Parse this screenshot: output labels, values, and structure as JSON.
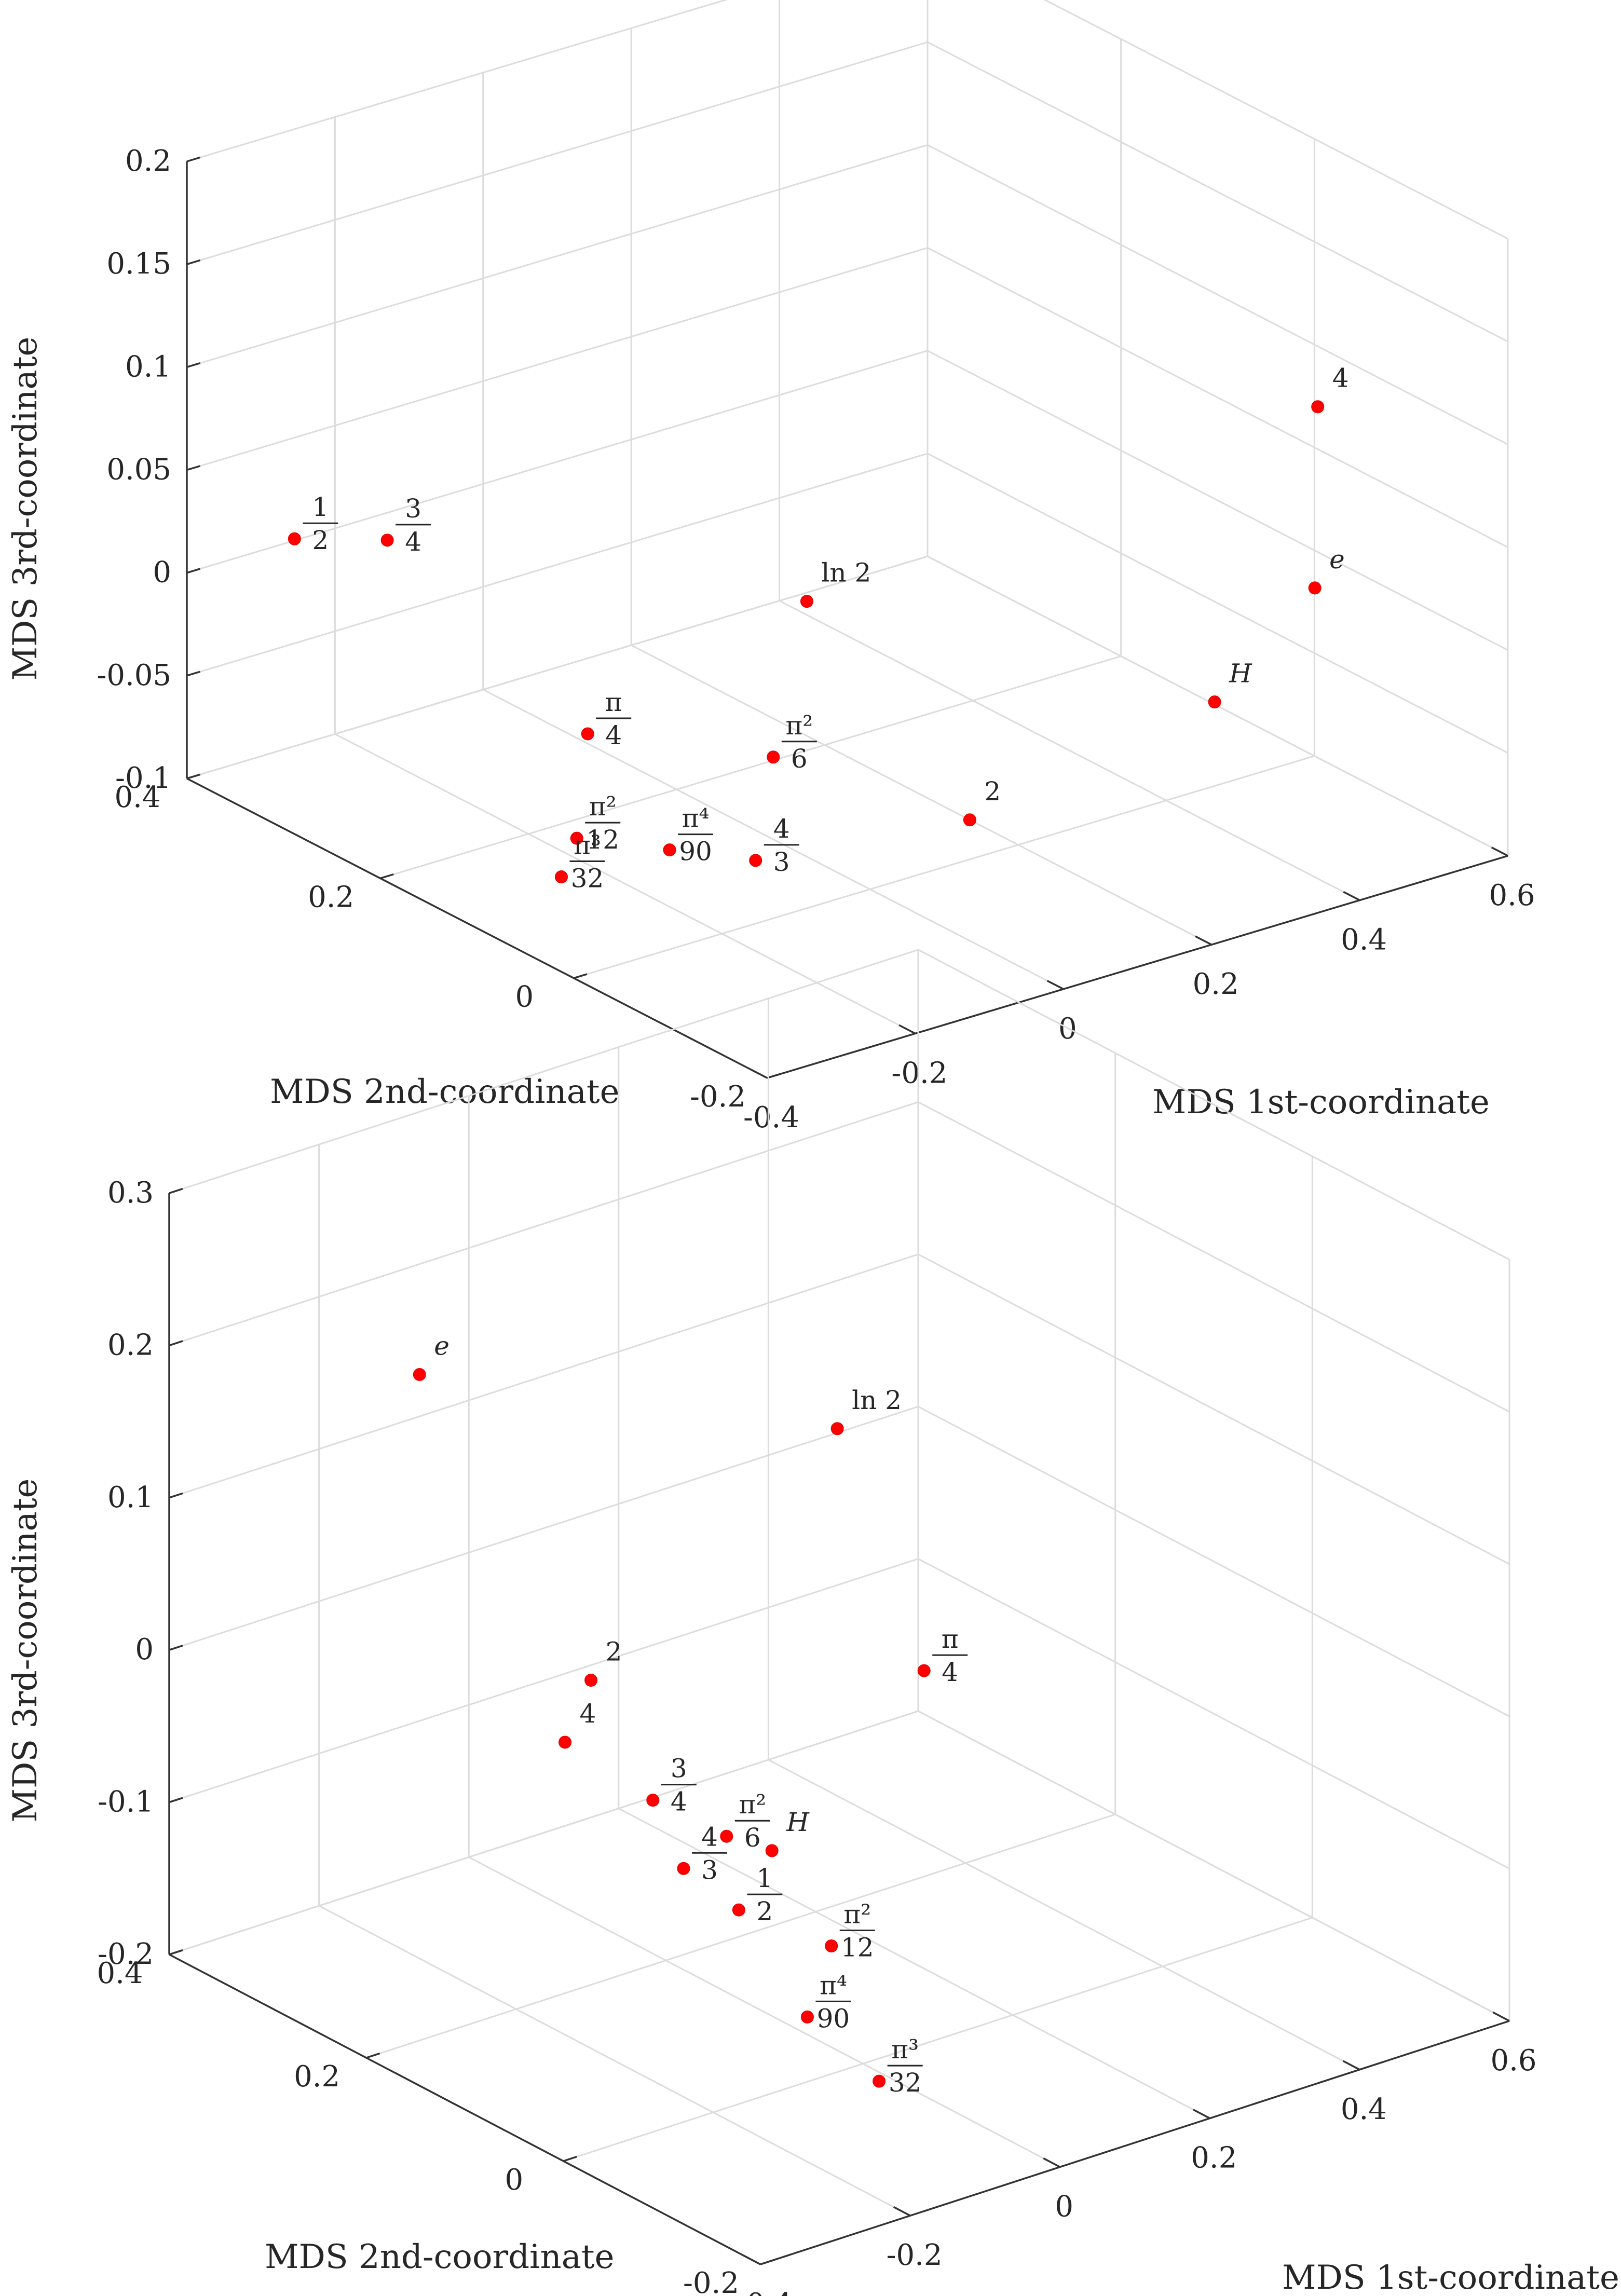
{
  "chart_data": [
    {
      "type": "scatter",
      "title": "",
      "xlabel": "MDS 1st-coordinate",
      "ylabel": "MDS 2nd-coordinate",
      "zlabel": "MDS 3rd-coordinate",
      "xlim": [
        -0.4,
        0.6
      ],
      "ylim": [
        -0.2,
        0.4
      ],
      "zlim": [
        -0.1,
        0.2
      ],
      "xticks": [
        "-0.4",
        "-0.2",
        "0",
        "0.2",
        "0.4",
        "0.6"
      ],
      "yticks": [
        "-0.2",
        "0",
        "0.2",
        "0.4"
      ],
      "zticks": [
        "-0.1",
        "-0.05",
        "0",
        "0.05",
        "0.1",
        "0.15",
        "0.2"
      ],
      "grid": true,
      "series": [
        {
          "color": "#ff0000",
          "points": [
            {
              "label": "1/2",
              "x": -0.32,
              "y": 0.35,
              "z": 0.02
            },
            {
              "label": "3/4",
              "x": -0.26,
              "y": 0.3,
              "z": 0.025
            },
            {
              "label": "ln 2",
              "x": -0.02,
              "y": 0.05,
              "z": 0.03
            },
            {
              "label": "4",
              "x": 0.5,
              "y": -0.08,
              "z": 0.1
            },
            {
              "label": "e",
              "x": 0.47,
              "y": -0.1,
              "z": 0.02
            },
            {
              "label": "H",
              "x": 0.4,
              "y": -0.05,
              "z": -0.04
            },
            {
              "label": "π/4",
              "x": -0.12,
              "y": 0.2,
              "z": -0.06
            },
            {
              "label": "π²/6",
              "x": 0.0,
              "y": 0.1,
              "z": -0.06
            },
            {
              "label": "2",
              "x": 0.2,
              "y": 0.05,
              "z": -0.1
            },
            {
              "label": "π²/12",
              "x": -0.2,
              "y": 0.15,
              "z": -0.09
            },
            {
              "label": "π⁴/90",
              "x": -0.14,
              "y": 0.1,
              "z": -0.09
            },
            {
              "label": "4/3",
              "x": -0.05,
              "y": 0.08,
              "z": -0.1
            },
            {
              "label": "π³/32",
              "x": -0.26,
              "y": 0.12,
              "z": -0.095
            }
          ]
        }
      ]
    },
    {
      "type": "scatter",
      "title": "",
      "xlabel": "MDS 1st-coordinate",
      "ylabel": "MDS 2nd-coordinate",
      "zlabel": "MDS 3rd-coordinate",
      "xlim": [
        -0.4,
        0.6
      ],
      "ylim": [
        -0.2,
        0.4
      ],
      "zlim": [
        -0.2,
        0.3
      ],
      "xticks": [
        "-0.4",
        "-0.2",
        "0",
        "0.2",
        "0.4",
        "0.6"
      ],
      "yticks": [
        "-0.2",
        "0",
        "0.2",
        "0.4"
      ],
      "zticks": [
        "-0.2",
        "-0.1",
        "0",
        "0.1",
        "0.2",
        "0.3"
      ],
      "grid": true,
      "series": [
        {
          "color": "#ff0000",
          "points": [
            {
              "label": "ln 2",
              "x": -0.1,
              "y": -0.05,
              "z": 0.25
            },
            {
              "label": "π/4",
              "x": -0.05,
              "y": -0.1,
              "z": 0.1
            },
            {
              "label": "e",
              "x": 0.0,
              "y": 0.45,
              "z": 0.1
            },
            {
              "label": "2",
              "x": -0.1,
              "y": 0.2,
              "z": 0.0
            },
            {
              "label": "4",
              "x": 0.26,
              "y": 0.5,
              "z": -0.2
            },
            {
              "label": "H",
              "x": 0.26,
              "y": 0.29,
              "z": -0.2
            },
            {
              "label": "3/4",
              "x": -0.07,
              "y": 0.16,
              "z": -0.07
            },
            {
              "label": "π²/6",
              "x": -0.09,
              "y": 0.07,
              "z": -0.06
            },
            {
              "label": "4/3",
              "x": -0.2,
              "y": 0.03,
              "z": -0.05
            },
            {
              "label": "1/2",
              "x": -0.1,
              "y": 0.05,
              "z": -0.1
            },
            {
              "label": "π²/12",
              "x": -0.2,
              "y": -0.12,
              "z": -0.05
            },
            {
              "label": "π⁴/90",
              "x": -0.14,
              "y": -0.05,
              "z": -0.13
            },
            {
              "label": "π³/32",
              "x": -0.11,
              "y": -0.1,
              "z": -0.16
            }
          ]
        }
      ]
    }
  ]
}
